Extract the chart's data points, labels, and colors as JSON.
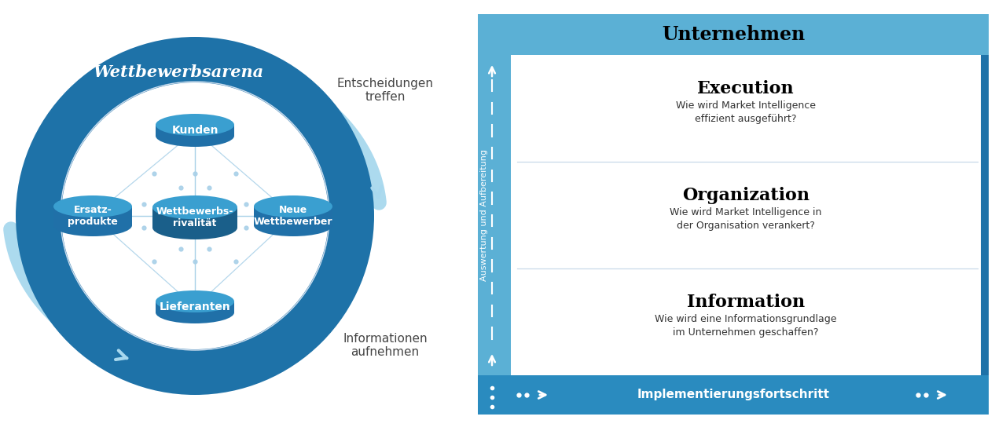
{
  "dark_blue": "#1e72a8",
  "mid_blue": "#2a8bbf",
  "light_blue": "#5bb0d5",
  "lighter_blue": "#8ecde8",
  "very_light_blue": "#a8d8ee",
  "pale_blue": "#c8e8f4",
  "bg": "#ffffff",
  "ring_blue": "#1e72a8",
  "ring_inner_white": "#ffffff",
  "cyl_body": "#2070a8",
  "cyl_top": "#3a9fd0",
  "cyl_center_body": "#1a5f8a",
  "line_color": "#a8d0e8",
  "wettbewerbsarena_text": "Wettbewerbsarena",
  "entscheidungen_text": "Entscheidungen\ntreffen",
  "informationen_text": "Informationen\naufnehmen",
  "unternehmen_text": "Unternehmen",
  "execution_title": "Execution",
  "execution_sub": "Wie wird Market Intelligence\neffizient ausgeführt?",
  "organization_title": "Organization",
  "organization_sub": "Wie wird Market Intelligence in\nder Organisation verankert?",
  "information_title": "Information",
  "information_sub": "Wie wird eine Informationsgrundlage\nim Unternehmen geschaffen?",
  "auswertung_text": "Auswertung und Aufbereitung",
  "impl_text": "Implementierungsfortschritt",
  "box_header_blue": "#5bb0d5",
  "box_right_dark": "#1e72a8",
  "box_bottom_blue": "#2a8bbf"
}
